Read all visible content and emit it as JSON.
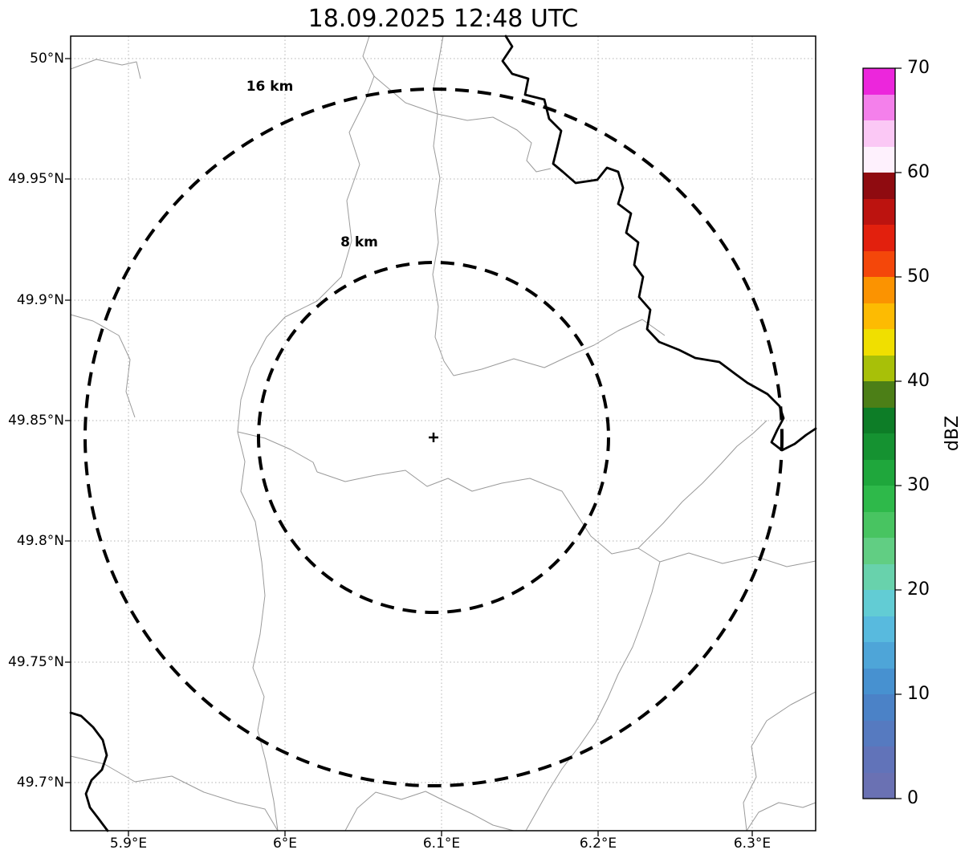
{
  "title": "18.09.2025 12:48 UTC",
  "map": {
    "rings": [
      {
        "label": "16 km",
        "radius_km": 16
      },
      {
        "label": "8 km",
        "radius_km": 8
      }
    ],
    "center_marker": "+"
  },
  "axes": {
    "y_ticks": [
      "50°N",
      "49.95°N",
      "49.9°N",
      "49.85°N",
      "49.8°N",
      "49.75°N",
      "49.7°N"
    ],
    "x_ticks": [
      "5.9°E",
      "6°E",
      "6.1°E",
      "6.2°E",
      "6.3°E"
    ]
  },
  "colorbar": {
    "label": "dBZ",
    "min": 0,
    "max": 70,
    "tick_labels": [
      "70",
      "60",
      "50",
      "40",
      "30",
      "20",
      "10",
      "0"
    ],
    "segment_step_dbz": 2.5,
    "segments_bottom_to_top": [
      "#6A71B3",
      "#6173B9",
      "#567AC0",
      "#4B82C7",
      "#4791D0",
      "#4EA5D8",
      "#58BADE",
      "#62CCD4",
      "#68D2AC",
      "#61CE83",
      "#48C461",
      "#2EB94A",
      "#1FA73C",
      "#159231",
      "#0D7D27",
      "#4C7F17",
      "#A8C008",
      "#F0DF00",
      "#FDBB02",
      "#FB9301",
      "#F4470A",
      "#E2200D",
      "#BC130F",
      "#8F0B10",
      "#FEF1FD",
      "#FBC8F5",
      "#F480EB",
      "#EC26DC"
    ]
  },
  "colors": {
    "background": "#ffffff",
    "grid": "#b3b3b3",
    "municipal_boundary": "#9a9a9a",
    "national_border": "#000000",
    "range_ring": "#000000"
  }
}
